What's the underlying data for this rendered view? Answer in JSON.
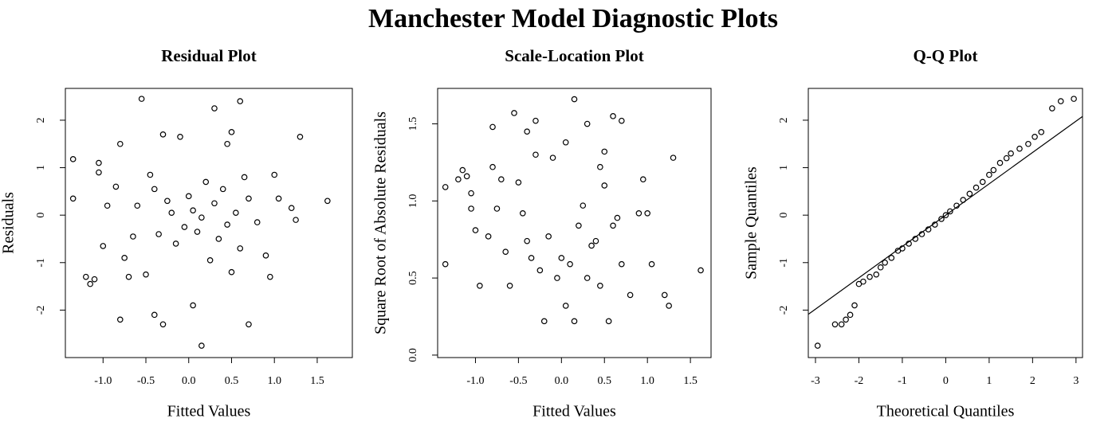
{
  "title": "Manchester Model Diagnostic Plots",
  "chart_data": [
    {
      "type": "scatter",
      "title": "Residual Plot",
      "x_label": "Fitted Values",
      "y_label": "Residuals",
      "xlim": [
        -1.44,
        1.91
      ],
      "ylim": [
        -3.0,
        2.67
      ],
      "xticks": [
        {
          "value": -1,
          "label": "-1.0"
        },
        -0.5,
        {
          "value": 0,
          "label": "0.0"
        },
        0.5,
        {
          "value": 1,
          "label": "1.0"
        },
        1.5
      ],
      "yticks": [
        -2,
        -1,
        0,
        1,
        2
      ],
      "x": [
        -1.35,
        -1.35,
        -1.2,
        -1.15,
        -1.1,
        -1.05,
        -1.05,
        -1.0,
        -0.95,
        -0.8,
        -0.8,
        -0.75,
        -0.7,
        -0.55,
        -0.5,
        -0.4,
        -0.3,
        -0.3,
        -0.1,
        0.05,
        0.15,
        0.3,
        0.6,
        0.7,
        0.5,
        1.3,
        1.62,
        1.0,
        1.05,
        1.2,
        1.25,
        0.95,
        0.9,
        0.45,
        -0.6,
        -0.45,
        -0.35,
        -0.2,
        -0.15,
        0.0,
        0.05,
        0.1,
        0.2,
        0.25,
        0.3,
        0.35,
        0.4,
        0.45,
        0.55,
        0.6,
        0.65,
        0.7,
        0.8,
        -0.85,
        -0.65,
        -0.25,
        0.15,
        -0.05,
        0.5,
        -0.4
      ],
      "values": [
        1.18,
        0.35,
        -1.3,
        -1.45,
        -1.35,
        1.1,
        0.9,
        -0.65,
        0.2,
        -2.2,
        1.5,
        -0.9,
        -1.3,
        2.45,
        -1.25,
        -2.1,
        -2.3,
        1.7,
        1.65,
        -1.9,
        -2.75,
        2.25,
        2.4,
        -2.3,
        1.75,
        1.65,
        0.3,
        0.85,
        0.35,
        0.15,
        -0.1,
        -1.3,
        -0.85,
        1.5,
        0.2,
        0.85,
        -0.4,
        0.05,
        -0.6,
        0.4,
        0.1,
        -0.35,
        0.7,
        -0.95,
        0.25,
        -0.5,
        0.55,
        -0.2,
        0.05,
        -0.7,
        0.8,
        0.35,
        -0.15,
        0.6,
        -0.45,
        0.3,
        -0.05,
        -0.25,
        -1.2,
        0.55
      ]
    },
    {
      "type": "scatter",
      "title": "Scale-Location Plot",
      "x_label": "Fitted Values",
      "y_label": "Square Root of Absolute Residuals",
      "xlim": [
        -1.44,
        1.74
      ],
      "ylim": [
        -0.016,
        1.73
      ],
      "xticks": [
        {
          "value": -1,
          "label": "-1.0"
        },
        -0.5,
        {
          "value": 0,
          "label": "0.0"
        },
        0.5,
        {
          "value": 1,
          "label": "1.0"
        },
        1.5
      ],
      "yticks": [
        {
          "value": 0,
          "label": "0.0"
        },
        0.5,
        {
          "value": 1,
          "label": "1.0"
        },
        1.5
      ],
      "x": [
        -1.35,
        -1.35,
        -1.2,
        -1.15,
        -1.1,
        -1.05,
        -1.05,
        -1.0,
        -0.95,
        -0.8,
        -0.8,
        -0.75,
        -0.7,
        -0.55,
        -0.5,
        -0.4,
        -0.3,
        -0.3,
        -0.1,
        0.05,
        0.15,
        0.3,
        0.6,
        0.7,
        0.5,
        1.3,
        1.62,
        1.0,
        1.05,
        1.2,
        1.25,
        0.95,
        0.9,
        0.45,
        -0.6,
        -0.45,
        -0.35,
        -0.2,
        -0.15,
        0.0,
        0.05,
        0.1,
        0.2,
        0.25,
        0.3,
        0.35,
        0.4,
        0.45,
        0.55,
        0.6,
        0.65,
        0.7,
        0.8,
        -0.85,
        -0.65,
        -0.25,
        0.15,
        -0.05,
        0.5,
        -0.4
      ],
      "values": [
        1.09,
        0.59,
        1.14,
        1.2,
        1.16,
        1.05,
        0.95,
        0.81,
        0.45,
        1.48,
        1.22,
        0.95,
        1.14,
        1.57,
        1.12,
        1.45,
        1.52,
        1.3,
        1.28,
        1.38,
        1.66,
        1.5,
        1.55,
        1.52,
        1.32,
        1.28,
        0.55,
        0.92,
        0.59,
        0.39,
        0.32,
        1.14,
        0.92,
        1.22,
        0.45,
        0.92,
        0.63,
        0.22,
        0.77,
        0.63,
        0.32,
        0.59,
        0.84,
        0.97,
        0.5,
        0.71,
        0.74,
        0.45,
        0.22,
        0.84,
        0.89,
        0.59,
        0.39,
        0.77,
        0.67,
        0.55,
        0.22,
        0.5,
        1.1,
        0.74
      ]
    },
    {
      "type": "scatter",
      "title": "Q-Q Plot",
      "x_label": "Theoretical Quantiles",
      "y_label": "Sample Quantiles",
      "xlim": [
        -3.165,
        3.15
      ],
      "ylim": [
        -3.0,
        2.67
      ],
      "xticks": [
        -3,
        -2,
        -1,
        0,
        1,
        2,
        3
      ],
      "yticks": [
        -2,
        -1,
        0,
        1,
        2
      ],
      "reference_line": {
        "intercept": 0.0,
        "slope": 0.66
      },
      "x": [
        -2.95,
        -2.55,
        -2.4,
        -2.3,
        -2.2,
        -2.1,
        -2.0,
        -1.9,
        -1.75,
        -1.6,
        -1.5,
        -1.4,
        -1.25,
        -1.1,
        -1.0,
        -0.85,
        -0.7,
        -0.55,
        -0.4,
        -0.25,
        -0.1,
        0.0,
        0.1,
        0.25,
        0.4,
        0.55,
        0.7,
        0.85,
        1.0,
        1.1,
        1.25,
        1.4,
        1.5,
        1.7,
        1.9,
        2.05,
        2.2,
        2.45,
        2.65,
        2.95
      ],
      "values": [
        -2.75,
        -2.3,
        -2.3,
        -2.2,
        -2.1,
        -1.9,
        -1.45,
        -1.4,
        -1.3,
        -1.25,
        -1.1,
        -1.0,
        -0.9,
        -0.75,
        -0.7,
        -0.6,
        -0.5,
        -0.4,
        -0.3,
        -0.2,
        -0.08,
        0.0,
        0.08,
        0.2,
        0.32,
        0.45,
        0.58,
        0.7,
        0.85,
        0.95,
        1.1,
        1.2,
        1.3,
        1.4,
        1.5,
        1.65,
        1.75,
        2.25,
        2.4,
        2.45
      ]
    }
  ]
}
